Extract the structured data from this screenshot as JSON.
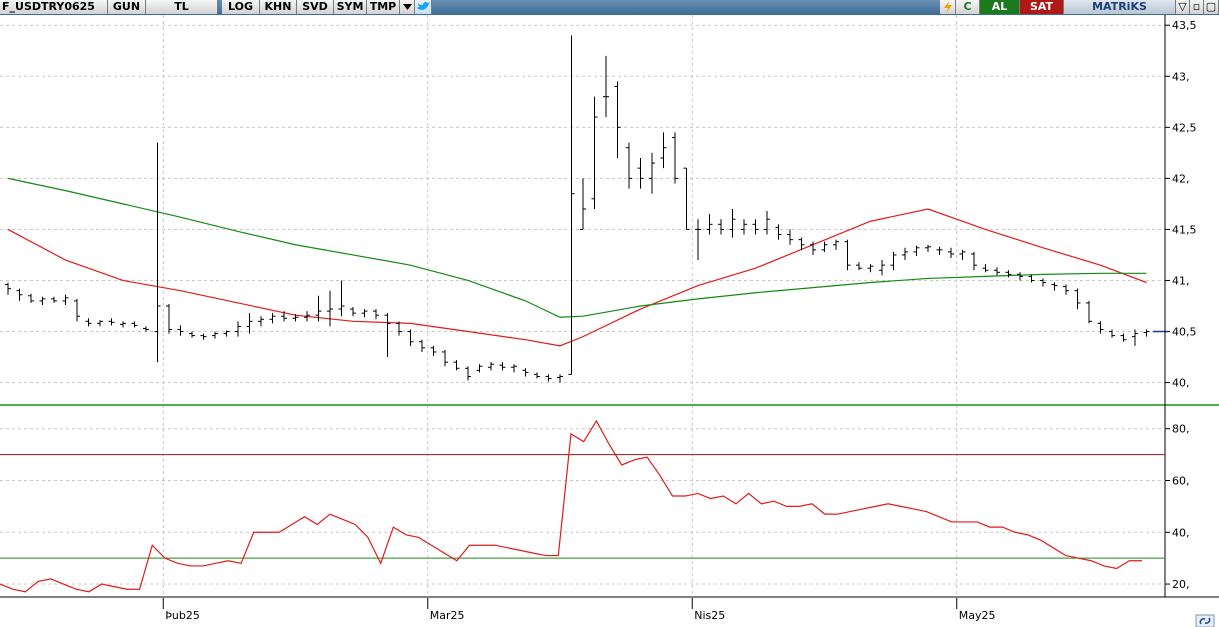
{
  "toolbar": {
    "symbol": "F_USDTRY0625",
    "period": "GUN",
    "currency": "TL",
    "buttons": [
      "LOG",
      "KHN",
      "SVD",
      "SYM",
      "TMP"
    ],
    "dropdown_icon": "triangle-down-icon",
    "twitter_icon": "bird-icon",
    "flash_icon": "lightning-icon",
    "refresh_label": "C",
    "buy_label": "AL",
    "sell_label": "SAT",
    "brand": "MATRiKS",
    "window_controls": [
      "▽",
      "▫",
      "▢"
    ]
  },
  "colors": {
    "ma_red": "#e41a1a",
    "ma_green": "#148a14",
    "overbought": "#8b1c1c",
    "oversold": "#1f8a1f",
    "bars": "#000000"
  },
  "chart_data": [
    {
      "type": "ohlc",
      "x_ticks": [
        "Þub25",
        "Mar25",
        "Nis25",
        "May25"
      ],
      "ylim": [
        39.8,
        43.6
      ],
      "y_ticks": [
        "43,5",
        "43,",
        "42,5",
        "42,",
        "41,5",
        "41,",
        "40,5",
        "40,"
      ],
      "y_tick_values": [
        43.5,
        43.0,
        42.5,
        42.0,
        41.5,
        41.0,
        40.5,
        40.0
      ],
      "grid": true,
      "bars": [
        [
          40.96,
          40.98,
          40.86,
          40.92
        ],
        [
          40.9,
          40.92,
          40.8,
          40.86
        ],
        [
          40.85,
          40.87,
          40.78,
          40.8
        ],
        [
          40.8,
          40.84,
          40.76,
          40.82
        ],
        [
          40.82,
          40.84,
          40.78,
          40.8
        ],
        [
          40.8,
          40.86,
          40.76,
          40.83
        ],
        [
          40.8,
          40.82,
          40.6,
          40.65
        ],
        [
          40.6,
          40.63,
          40.55,
          40.58
        ],
        [
          40.58,
          40.61,
          40.55,
          40.6
        ],
        [
          40.6,
          40.63,
          40.56,
          40.59
        ],
        [
          40.57,
          40.6,
          40.54,
          40.58
        ],
        [
          40.58,
          40.6,
          40.54,
          40.56
        ],
        [
          40.53,
          40.55,
          40.5,
          40.52
        ],
        [
          40.5,
          42.35,
          40.2,
          40.75
        ],
        [
          40.75,
          40.77,
          40.48,
          40.52
        ],
        [
          40.52,
          40.56,
          40.46,
          40.5
        ],
        [
          40.48,
          40.5,
          40.44,
          40.46
        ],
        [
          40.46,
          40.48,
          40.42,
          40.45
        ],
        [
          40.46,
          40.5,
          40.43,
          40.48
        ],
        [
          40.48,
          40.51,
          40.45,
          40.5
        ],
        [
          40.5,
          40.6,
          40.45,
          40.55
        ],
        [
          40.55,
          40.68,
          40.48,
          40.6
        ],
        [
          40.6,
          40.65,
          40.55,
          40.62
        ],
        [
          40.62,
          40.68,
          40.58,
          40.65
        ],
        [
          40.65,
          40.7,
          40.6,
          40.63
        ],
        [
          40.63,
          40.67,
          40.6,
          40.64
        ],
        [
          40.64,
          40.7,
          40.6,
          40.66
        ],
        [
          40.66,
          40.85,
          40.6,
          40.7
        ],
        [
          40.7,
          40.9,
          40.55,
          40.72
        ],
        [
          40.72,
          41.0,
          40.65,
          40.75
        ],
        [
          40.72,
          40.74,
          40.65,
          40.68
        ],
        [
          40.68,
          40.72,
          40.64,
          40.7
        ],
        [
          40.7,
          40.72,
          40.62,
          40.66
        ],
        [
          40.66,
          40.68,
          40.25,
          40.58
        ],
        [
          40.58,
          40.6,
          40.46,
          40.5
        ],
        [
          40.5,
          40.52,
          40.36,
          40.4
        ],
        [
          40.4,
          40.42,
          40.3,
          40.34
        ],
        [
          40.34,
          40.36,
          40.26,
          40.3
        ],
        [
          40.3,
          40.32,
          40.16,
          40.2
        ],
        [
          40.2,
          40.22,
          40.12,
          40.14
        ],
        [
          40.14,
          40.16,
          40.02,
          40.06
        ],
        [
          40.12,
          40.18,
          40.1,
          40.16
        ],
        [
          40.15,
          40.2,
          40.12,
          40.18
        ],
        [
          40.17,
          40.2,
          40.12,
          40.15
        ],
        [
          40.15,
          40.18,
          40.1,
          40.16
        ],
        [
          40.12,
          40.14,
          40.06,
          40.1
        ],
        [
          40.08,
          40.1,
          40.04,
          40.06
        ],
        [
          40.06,
          40.08,
          40.01,
          40.04
        ],
        [
          40.05,
          40.08,
          40.0,
          40.06
        ],
        [
          40.08,
          43.4,
          40.08,
          41.85
        ],
        [
          41.5,
          42.0,
          41.5,
          41.7
        ],
        [
          41.8,
          42.8,
          41.7,
          42.6
        ],
        [
          42.8,
          43.2,
          42.6,
          42.8
        ],
        [
          42.9,
          42.95,
          42.2,
          42.5
        ],
        [
          42.3,
          42.35,
          41.9,
          42.0
        ],
        [
          42.1,
          42.2,
          41.9,
          42.0
        ],
        [
          42.0,
          42.25,
          41.85,
          42.15
        ],
        [
          42.2,
          42.45,
          42.1,
          42.3
        ],
        [
          42.4,
          42.45,
          41.95,
          42.0
        ],
        [
          42.1,
          42.1,
          41.5,
          41.5
        ],
        [
          41.5,
          41.6,
          41.2,
          41.5
        ],
        [
          41.5,
          41.65,
          41.45,
          41.55
        ],
        [
          41.55,
          41.6,
          41.45,
          41.5
        ],
        [
          41.5,
          41.7,
          41.42,
          41.6
        ],
        [
          41.5,
          41.6,
          41.45,
          41.55
        ],
        [
          41.55,
          41.6,
          41.45,
          41.5
        ],
        [
          41.5,
          41.68,
          41.45,
          41.6
        ],
        [
          41.52,
          41.55,
          41.4,
          41.45
        ],
        [
          41.45,
          41.5,
          41.35,
          41.4
        ],
        [
          41.4,
          41.42,
          41.3,
          41.35
        ],
        [
          41.35,
          41.38,
          41.25,
          41.3
        ],
        [
          41.3,
          41.38,
          41.28,
          41.35
        ],
        [
          41.35,
          41.4,
          41.3,
          41.38
        ],
        [
          41.38,
          41.4,
          41.1,
          41.15
        ],
        [
          41.15,
          41.18,
          41.1,
          41.12
        ],
        [
          41.12,
          41.16,
          41.08,
          41.14
        ],
        [
          41.1,
          41.2,
          41.05,
          41.15
        ],
        [
          41.15,
          41.28,
          41.1,
          41.25
        ],
        [
          41.25,
          41.32,
          41.2,
          41.28
        ],
        [
          41.28,
          41.34,
          41.24,
          41.32
        ],
        [
          41.32,
          41.35,
          41.28,
          41.33
        ],
        [
          41.3,
          41.33,
          41.25,
          41.3
        ],
        [
          41.28,
          41.32,
          41.22,
          41.26
        ],
        [
          41.26,
          41.3,
          41.2,
          41.28
        ],
        [
          41.26,
          41.28,
          41.1,
          41.15
        ],
        [
          41.12,
          41.16,
          41.08,
          41.1
        ],
        [
          41.1,
          41.13,
          41.05,
          41.08
        ],
        [
          41.08,
          41.1,
          41.03,
          41.06
        ],
        [
          41.06,
          41.08,
          41.0,
          41.04
        ],
        [
          41.04,
          41.06,
          40.98,
          41.0
        ],
        [
          41.0,
          41.02,
          40.94,
          40.98
        ],
        [
          40.96,
          40.98,
          40.9,
          40.95
        ],
        [
          40.94,
          40.96,
          40.86,
          40.9
        ],
        [
          40.9,
          40.92,
          40.72,
          40.78
        ],
        [
          40.78,
          40.8,
          40.58,
          40.6
        ],
        [
          40.58,
          40.6,
          40.48,
          40.52
        ],
        [
          40.5,
          40.52,
          40.44,
          40.46
        ],
        [
          40.46,
          40.48,
          40.4,
          40.42
        ],
        [
          40.45,
          40.52,
          40.36,
          40.48
        ],
        [
          40.49,
          40.52,
          40.45,
          40.5
        ]
      ],
      "last_price": 40.5,
      "series": [
        {
          "type": "line",
          "color": "#e41a1a",
          "x": [
            0,
            5,
            10,
            15,
            20,
            25,
            30,
            35,
            40,
            45,
            48,
            50,
            55,
            60,
            65,
            70,
            75,
            80,
            85,
            90,
            95,
            99
          ],
          "values": [
            41.5,
            41.2,
            41.0,
            40.9,
            40.78,
            40.66,
            40.6,
            40.58,
            40.5,
            40.42,
            40.36,
            40.45,
            40.72,
            40.95,
            41.12,
            41.35,
            41.58,
            41.7,
            41.5,
            41.32,
            41.15,
            40.98
          ]
        },
        {
          "type": "line",
          "color": "#148a14",
          "x": [
            0,
            5,
            10,
            15,
            20,
            25,
            30,
            35,
            40,
            45,
            48,
            50,
            55,
            60,
            65,
            70,
            75,
            80,
            85,
            90,
            95,
            99
          ],
          "values": [
            42.0,
            41.88,
            41.75,
            41.62,
            41.48,
            41.35,
            41.25,
            41.15,
            41.0,
            40.8,
            40.64,
            40.65,
            40.75,
            40.82,
            40.88,
            40.93,
            40.98,
            41.02,
            41.04,
            41.06,
            41.07,
            41.07
          ]
        }
      ]
    },
    {
      "type": "line",
      "ylim": [
        15,
        88
      ],
      "y_ticks": [
        "80,",
        "60,",
        "40,",
        "20,"
      ],
      "y_tick_values": [
        80,
        60,
        40,
        20
      ],
      "grid": true,
      "reference_lines": [
        {
          "value": 70,
          "color": "#8b1c1c"
        },
        {
          "value": 30,
          "color": "#1f8a1f"
        }
      ],
      "series": [
        {
          "color": "#e41a1a",
          "values": [
            20,
            18,
            17,
            21,
            22,
            20,
            18,
            17,
            20,
            19,
            18,
            18,
            35,
            30,
            28,
            27,
            27,
            28,
            29,
            28,
            40,
            40,
            40,
            43,
            46,
            43,
            47,
            45,
            43,
            38,
            28,
            42,
            39,
            38,
            35,
            32,
            29,
            35,
            35,
            35,
            34,
            33,
            32,
            31,
            31,
            78,
            75,
            83,
            74,
            66,
            68,
            69,
            62,
            54,
            54,
            55,
            53,
            54,
            51,
            55,
            51,
            52,
            50,
            50,
            51,
            47,
            47,
            48,
            49,
            50,
            51,
            50,
            49,
            48,
            46,
            44,
            44,
            44,
            42,
            42,
            40,
            39,
            37,
            34,
            31,
            30,
            29,
            27,
            26,
            29,
            29
          ]
        }
      ]
    }
  ]
}
